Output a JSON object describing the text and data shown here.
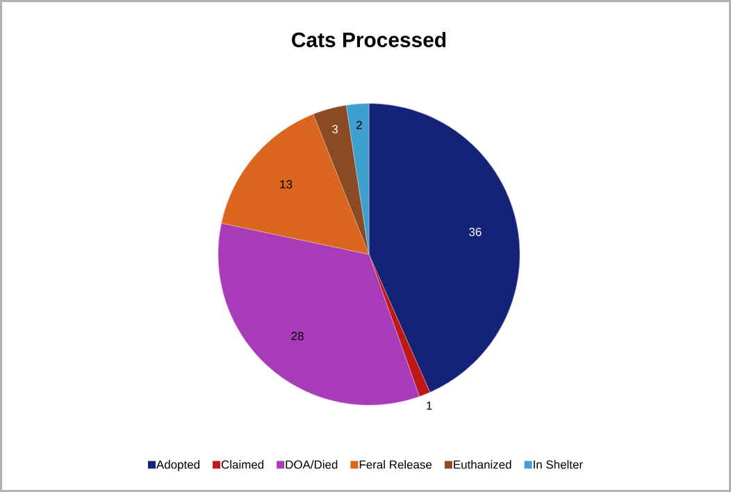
{
  "chart_data": {
    "type": "pie",
    "title": "Cats Processed",
    "categories": [
      "Adopted",
      "Claimed",
      "DOA/Died",
      "Feral Release",
      "Euthanized",
      "In Shelter"
    ],
    "values": [
      36,
      1,
      28,
      13,
      3,
      2
    ],
    "colors": [
      "#142378",
      "#c01818",
      "#a83cb8",
      "#d9661c",
      "#8c4a22",
      "#3f9fcf"
    ],
    "data_labels": true,
    "legend": "bottom"
  }
}
